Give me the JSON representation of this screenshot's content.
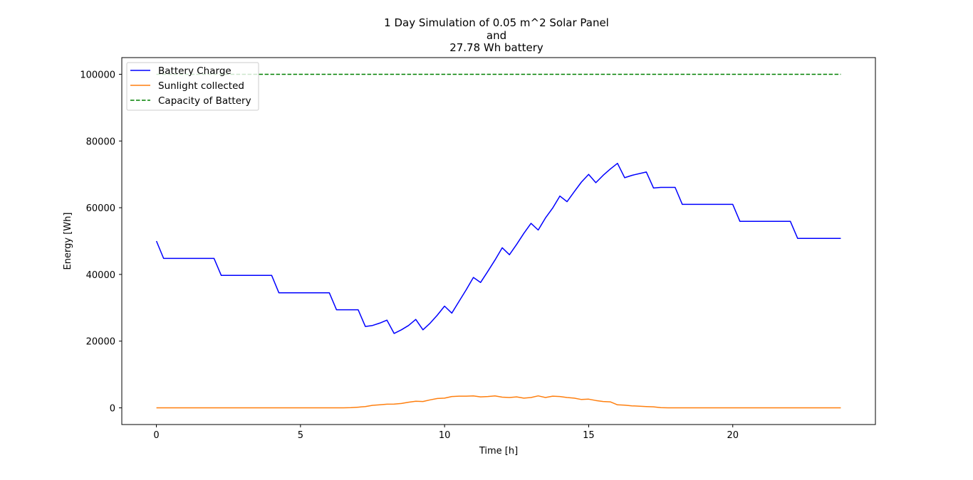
{
  "chart_data": {
    "type": "line",
    "title_lines": [
      "1 Day Simulation of 0.05 m^2 Solar Panel",
      "and",
      "27.78 Wh battery"
    ],
    "xlabel": "Time [h]",
    "ylabel": "Energy [Wh]",
    "xlim": [
      -1.2,
      24.95
    ],
    "ylim": [
      -5000,
      105000
    ],
    "xticks": [
      0,
      5,
      10,
      15,
      20
    ],
    "yticks": [
      0,
      20000,
      40000,
      60000,
      80000,
      100000
    ],
    "grid": false,
    "legend_position": "top-left",
    "series": [
      {
        "name": "Battery Charge",
        "color": "#0000ff",
        "dash": "solid",
        "points": [
          [
            0,
            50000
          ],
          [
            0.25,
            44800
          ],
          [
            2.0,
            44800
          ],
          [
            2.25,
            39700
          ],
          [
            4.0,
            39700
          ],
          [
            4.25,
            34500
          ],
          [
            6.0,
            34500
          ],
          [
            6.25,
            29400
          ],
          [
            7.0,
            29400
          ],
          [
            7.25,
            24400
          ],
          [
            7.5,
            24700
          ],
          [
            7.75,
            25400
          ],
          [
            8.0,
            26300
          ],
          [
            8.25,
            22300
          ],
          [
            8.5,
            23400
          ],
          [
            8.75,
            24700
          ],
          [
            9.0,
            26500
          ],
          [
            9.25,
            23400
          ],
          [
            9.5,
            25400
          ],
          [
            9.75,
            27800
          ],
          [
            10.0,
            30500
          ],
          [
            10.25,
            28400
          ],
          [
            10.5,
            31900
          ],
          [
            10.75,
            35400
          ],
          [
            11.0,
            39100
          ],
          [
            11.25,
            37600
          ],
          [
            11.5,
            40900
          ],
          [
            11.75,
            44300
          ],
          [
            12.0,
            48000
          ],
          [
            12.25,
            45900
          ],
          [
            12.5,
            49000
          ],
          [
            12.75,
            52300
          ],
          [
            13.0,
            55300
          ],
          [
            13.25,
            53300
          ],
          [
            13.5,
            56900
          ],
          [
            13.75,
            59900
          ],
          [
            14.0,
            63500
          ],
          [
            14.25,
            61800
          ],
          [
            14.5,
            64800
          ],
          [
            14.75,
            67700
          ],
          [
            15.0,
            70000
          ],
          [
            15.25,
            67500
          ],
          [
            15.5,
            69700
          ],
          [
            15.75,
            71600
          ],
          [
            16.0,
            73300
          ],
          [
            16.25,
            69000
          ],
          [
            16.5,
            69700
          ],
          [
            17.0,
            70700
          ],
          [
            17.25,
            65900
          ],
          [
            17.5,
            66100
          ],
          [
            18.0,
            66100
          ],
          [
            18.25,
            61000
          ],
          [
            20.0,
            61000
          ],
          [
            20.25,
            55900
          ],
          [
            22.0,
            55900
          ],
          [
            22.25,
            50800
          ],
          [
            23.75,
            50800
          ]
        ]
      },
      {
        "name": "Sunlight collected",
        "color": "#ff7f0e",
        "dash": "solid",
        "points": [
          [
            0,
            0
          ],
          [
            6.5,
            0
          ],
          [
            6.75,
            50
          ],
          [
            7.0,
            200
          ],
          [
            7.25,
            400
          ],
          [
            7.5,
            750
          ],
          [
            7.75,
            900
          ],
          [
            8.0,
            1100
          ],
          [
            8.25,
            1150
          ],
          [
            8.5,
            1300
          ],
          [
            8.75,
            1700
          ],
          [
            9.0,
            2000
          ],
          [
            9.25,
            1900
          ],
          [
            9.5,
            2400
          ],
          [
            9.75,
            2800
          ],
          [
            10.0,
            2900
          ],
          [
            10.25,
            3400
          ],
          [
            10.5,
            3500
          ],
          [
            10.75,
            3500
          ],
          [
            11.0,
            3600
          ],
          [
            11.25,
            3300
          ],
          [
            11.5,
            3400
          ],
          [
            11.75,
            3600
          ],
          [
            12.0,
            3200
          ],
          [
            12.25,
            3100
          ],
          [
            12.5,
            3300
          ],
          [
            12.75,
            2900
          ],
          [
            13.0,
            3100
          ],
          [
            13.25,
            3600
          ],
          [
            13.5,
            3100
          ],
          [
            13.75,
            3500
          ],
          [
            14.0,
            3400
          ],
          [
            14.25,
            3100
          ],
          [
            14.5,
            2900
          ],
          [
            14.75,
            2500
          ],
          [
            15.0,
            2600
          ],
          [
            15.25,
            2200
          ],
          [
            15.5,
            1900
          ],
          [
            15.75,
            1800
          ],
          [
            16.0,
            900
          ],
          [
            16.25,
            800
          ],
          [
            16.5,
            600
          ],
          [
            17.0,
            400
          ],
          [
            17.25,
            300
          ],
          [
            17.5,
            50
          ],
          [
            17.75,
            0
          ],
          [
            23.75,
            0
          ]
        ]
      },
      {
        "name": "Capacity of Battery",
        "color": "#008000",
        "dash": "dashed",
        "points": [
          [
            0,
            100000
          ],
          [
            23.75,
            100000
          ]
        ]
      }
    ]
  }
}
